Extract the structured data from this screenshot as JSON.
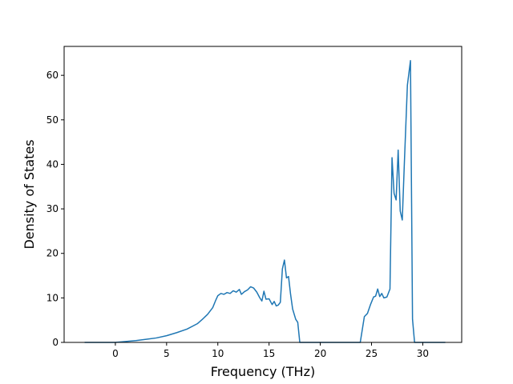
{
  "chart_data": {
    "type": "line",
    "title": "",
    "xlabel": "Frequency (THz)",
    "ylabel": "Density of States",
    "xlim": [
      -5.0,
      33.8
    ],
    "ylim": [
      0,
      66.5
    ],
    "xticks": [
      0,
      5,
      10,
      15,
      20,
      25,
      30
    ],
    "yticks": [
      0,
      10,
      20,
      30,
      40,
      50,
      60
    ],
    "xtick_labels": [
      "0",
      "5",
      "10",
      "15",
      "20",
      "25",
      "30"
    ],
    "ytick_labels": [
      "0",
      "10",
      "20",
      "30",
      "40",
      "50",
      "60"
    ],
    "grid": false,
    "legend": "none",
    "line_color": "#1f77b4",
    "series": [
      {
        "x": [
          -3.0,
          0.0,
          1.0,
          2.0,
          3.0,
          4.0,
          5.0,
          6.0,
          7.0,
          8.0,
          8.5,
          9.0,
          9.5,
          9.8,
          10.0,
          10.3,
          10.6,
          10.9,
          11.2,
          11.5,
          11.8,
          12.1,
          12.3,
          12.6,
          12.9,
          13.2,
          13.5,
          13.8,
          14.1,
          14.3,
          14.5,
          14.7,
          15.0,
          15.3,
          15.5,
          15.7,
          15.9,
          16.1,
          16.3,
          16.5,
          16.7,
          16.9,
          17.1,
          17.3,
          17.6,
          17.8,
          18.0,
          20.0,
          22.0,
          23.9,
          24.3,
          24.6,
          24.9,
          25.2,
          25.4,
          25.6,
          25.8,
          26.0,
          26.2,
          26.5,
          26.8,
          27.0,
          27.2,
          27.4,
          27.6,
          27.8,
          28.0,
          28.2,
          28.5,
          28.8,
          29.0,
          29.2,
          29.5,
          30.0,
          32.2
        ],
        "y": [
          0,
          0,
          0.2,
          0.4,
          0.7,
          1.0,
          1.5,
          2.2,
          3.0,
          4.2,
          5.2,
          6.3,
          7.8,
          9.5,
          10.5,
          11.0,
          10.8,
          11.2,
          11.0,
          11.6,
          11.3,
          11.9,
          10.8,
          11.4,
          11.8,
          12.5,
          12.2,
          11.3,
          10.0,
          9.3,
          11.5,
          9.7,
          9.8,
          8.5,
          9.2,
          8.2,
          8.4,
          9.0,
          16.5,
          18.5,
          14.5,
          14.8,
          10.8,
          7.5,
          5.2,
          4.5,
          0,
          0,
          0,
          0,
          5.8,
          6.5,
          8.5,
          10.2,
          10.4,
          12.0,
          10.3,
          11.0,
          10.0,
          10.2,
          12.0,
          41.5,
          33.5,
          32.0,
          43.2,
          29.5,
          27.5,
          40.0,
          57.8,
          63.3,
          5.2,
          0,
          0,
          0,
          0
        ]
      }
    ]
  }
}
